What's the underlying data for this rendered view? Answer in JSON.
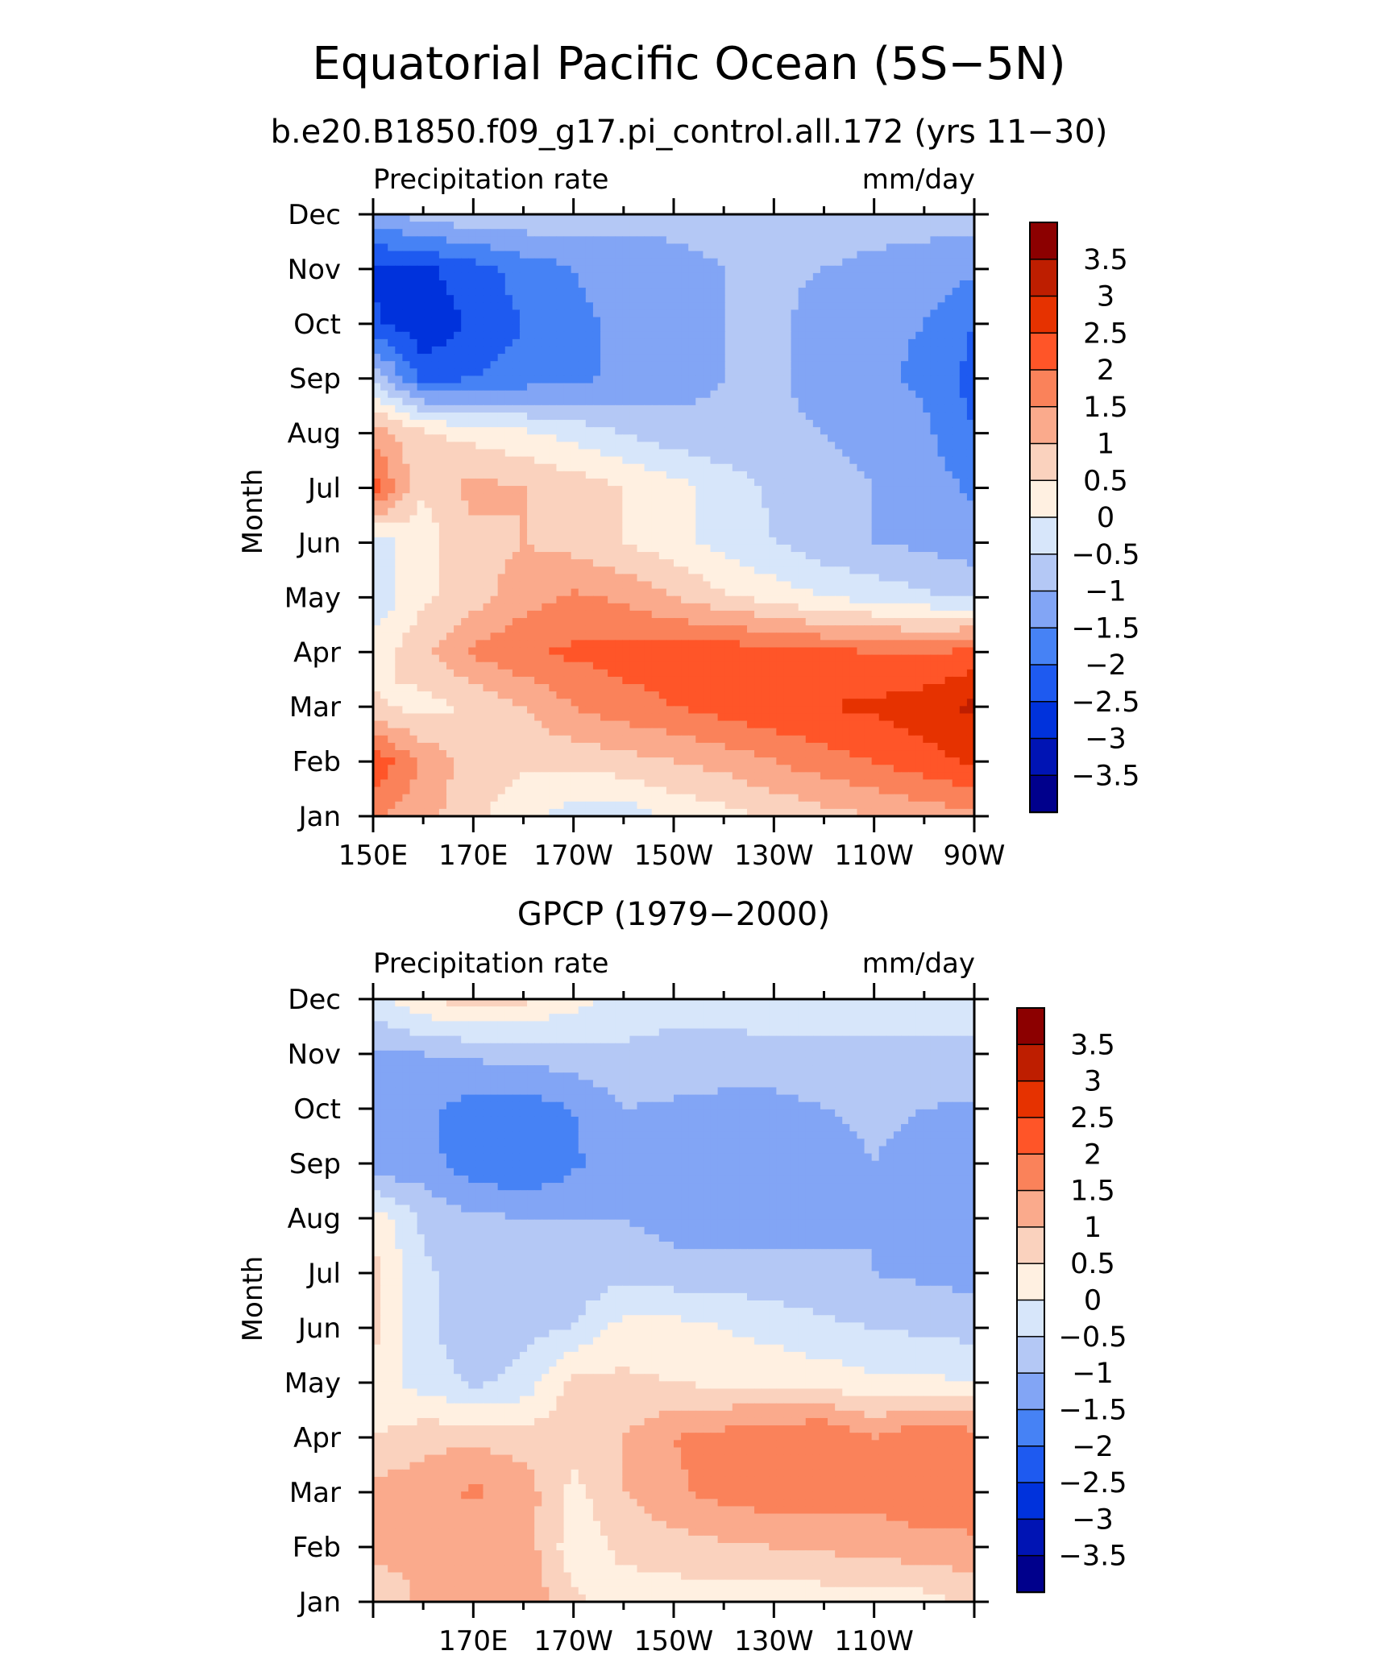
{
  "figure": {
    "title": "Equatorial Pacific Ocean (5S−5N)"
  },
  "colors": {
    "levels": [
      "#00008c",
      "#0014b4",
      "#0032dc",
      "#1e5af0",
      "#4682f5",
      "#82a5f5",
      "#b4c8f5",
      "#d7e6fa",
      "#fff0e1",
      "#fad2be",
      "#faaa8c",
      "#fa825a",
      "#ff5528",
      "#e63200",
      "#be1e00",
      "#8c0000"
    ]
  },
  "chart_data": [
    {
      "type": "heatmap",
      "title": "b.e20.B1850.f09_g17.pi_control.all.172 (yrs 11−30)",
      "left_label": "Precipitation rate",
      "right_label": "mm/day",
      "ylabel": "Month",
      "yticks": [
        "Jan",
        "Feb",
        "Mar",
        "Apr",
        "May",
        "Jun",
        "Jul",
        "Aug",
        "Sep",
        "Oct",
        "Nov",
        "Dec"
      ],
      "xticks": [
        "150E",
        "170E",
        "170W",
        "150W",
        "130W",
        "110W",
        "90W"
      ],
      "colorbar_labels": [
        "3.5",
        "3",
        "2.5",
        "2",
        "1.5",
        "1",
        "0.5",
        "0",
        "−0.5",
        "−1",
        "−1.5",
        "−2",
        "−2.5",
        "−3",
        "−3.5"
      ],
      "x": [
        150,
        160,
        170,
        180,
        190,
        200,
        210,
        220,
        230,
        240,
        250,
        260,
        270
      ],
      "y": [
        "Jan",
        "Feb",
        "Mar",
        "Apr",
        "May",
        "Jun",
        "Jul",
        "Aug",
        "Sep",
        "Oct",
        "Nov",
        "Dec"
      ],
      "z": [
        [
          1.6,
          1.2,
          0.6,
          0.2,
          -0.3,
          -0.3,
          0.1,
          0.3,
          0.6,
          0.8,
          1.0,
          1.2,
          1.4
        ],
        [
          2.4,
          1.4,
          0.8,
          0.6,
          0.7,
          0.8,
          1.0,
          1.2,
          1.5,
          1.8,
          2.0,
          2.3,
          2.6
        ],
        [
          0.6,
          0.3,
          0.6,
          1.0,
          1.5,
          1.8,
          2.0,
          2.2,
          2.4,
          2.5,
          2.6,
          2.8,
          3.1
        ],
        [
          0.2,
          0.9,
          1.6,
          1.9,
          2.1,
          2.2,
          2.3,
          2.3,
          2.2,
          2.1,
          2.0,
          1.9,
          2.2
        ],
        [
          -0.4,
          0.4,
          0.8,
          1.3,
          1.6,
          1.4,
          1.0,
          0.6,
          0.3,
          0.0,
          -0.2,
          -0.4,
          -0.6
        ],
        [
          -0.3,
          0.3,
          0.8,
          1.0,
          0.8,
          0.5,
          0.2,
          -0.2,
          -0.5,
          -0.8,
          -1.0,
          -1.1,
          -1.3
        ],
        [
          2.3,
          0.5,
          1.2,
          1.0,
          0.8,
          0.5,
          0.2,
          -0.2,
          -0.6,
          -0.8,
          -1.0,
          -1.2,
          -1.6
        ],
        [
          1.3,
          0.6,
          0.3,
          0.1,
          -0.2,
          -0.5,
          -0.8,
          -0.9,
          -0.9,
          -1.0,
          -1.2,
          -1.4,
          -2.0
        ],
        [
          -0.5,
          -2.2,
          -2.0,
          -1.8,
          -1.6,
          -1.4,
          -1.2,
          -1.0,
          -0.9,
          -1.2,
          -1.4,
          -1.6,
          -2.2
        ],
        [
          -2.4,
          -2.9,
          -2.4,
          -2.0,
          -1.6,
          -1.4,
          -1.2,
          -1.0,
          -0.9,
          -1.2,
          -1.4,
          -1.5,
          -2.0
        ],
        [
          -2.6,
          -2.6,
          -2.2,
          -1.8,
          -1.5,
          -1.3,
          -1.1,
          -1.0,
          -0.9,
          -1.0,
          -1.1,
          -1.2,
          -1.4
        ],
        [
          -1.2,
          -0.8,
          -0.6,
          -0.6,
          -0.7,
          -0.8,
          -0.9,
          -0.9,
          -0.8,
          -0.8,
          -0.8,
          -0.8,
          -0.8
        ]
      ]
    },
    {
      "type": "heatmap",
      "title": "GPCP (1979−2000)",
      "left_label": "Precipitation rate",
      "right_label": "mm/day",
      "ylabel": "Month",
      "yticks": [
        "Jan",
        "Feb",
        "Mar",
        "Apr",
        "May",
        "Jun",
        "Jul",
        "Aug",
        "Sep",
        "Oct",
        "Nov",
        "Dec"
      ],
      "xticks": [
        "170E",
        "170W",
        "150W",
        "130W",
        "110W"
      ],
      "colorbar_labels": [
        "3.5",
        "3",
        "2.5",
        "2",
        "1.5",
        "1",
        "0.5",
        "0",
        "−0.5",
        "−1",
        "−1.5",
        "−2",
        "−2.5",
        "−3",
        "−3.5"
      ],
      "x": [
        150,
        160,
        170,
        180,
        190,
        200,
        210,
        220,
        230,
        240,
        250,
        260,
        270
      ],
      "y": [
        "Jan",
        "Feb",
        "Mar",
        "Apr",
        "May",
        "Jun",
        "Jul",
        "Aug",
        "Sep",
        "Oct",
        "Nov",
        "Dec"
      ],
      "z": [
        [
          0.6,
          1.1,
          1.2,
          1.4,
          0.6,
          0.3,
          0.2,
          0.3,
          0.2,
          0.2,
          0.3,
          0.3,
          0.6
        ],
        [
          1.2,
          1.1,
          1.0,
          1.3,
          0.2,
          0.6,
          0.8,
          0.9,
          1.0,
          1.1,
          1.2,
          1.3,
          1.4
        ],
        [
          1.2,
          1.3,
          1.6,
          1.3,
          0.3,
          1.0,
          1.4,
          1.7,
          1.8,
          1.8,
          1.7,
          1.9,
          1.8
        ],
        [
          0.5,
          0.8,
          0.9,
          0.7,
          0.8,
          1.0,
          1.5,
          1.7,
          1.9,
          2.0,
          1.5,
          2.0,
          1.7
        ],
        [
          0.2,
          -0.2,
          -0.6,
          -0.3,
          0.7,
          0.6,
          0.5,
          0.4,
          0.4,
          0.3,
          0.1,
          0.1,
          0.0
        ],
        [
          0.7,
          -0.4,
          -0.8,
          -0.7,
          -0.5,
          0.2,
          0.2,
          0.0,
          -0.2,
          -0.4,
          -0.5,
          -0.6,
          -0.7
        ],
        [
          0.7,
          -0.4,
          -0.8,
          -0.9,
          -0.8,
          -0.7,
          -0.8,
          -0.8,
          -0.8,
          -0.9,
          -1.0,
          -1.1,
          -1.2
        ],
        [
          0.3,
          -0.6,
          -0.9,
          -1.0,
          -1.0,
          -1.0,
          -1.2,
          -1.3,
          -1.3,
          -1.1,
          -1.0,
          -1.2,
          -1.4
        ],
        [
          -1.4,
          -1.3,
          -1.8,
          -2.0,
          -1.6,
          -1.1,
          -1.3,
          -1.4,
          -1.3,
          -1.2,
          -1.0,
          -1.2,
          -1.3
        ],
        [
          -1.2,
          -1.4,
          -1.7,
          -1.8,
          -1.5,
          -1.0,
          -1.1,
          -1.2,
          -1.2,
          -1.0,
          -0.9,
          -1.0,
          -1.1
        ],
        [
          -1.0,
          -1.0,
          -0.9,
          -0.8,
          -0.7,
          -0.6,
          -0.6,
          -0.6,
          -0.6,
          -0.6,
          -0.6,
          -0.6,
          -0.6
        ],
        [
          -0.2,
          0.4,
          0.8,
          0.6,
          0.2,
          -0.2,
          -0.4,
          -0.4,
          -0.3,
          -0.3,
          -0.3,
          -0.3,
          -0.3
        ]
      ]
    }
  ]
}
